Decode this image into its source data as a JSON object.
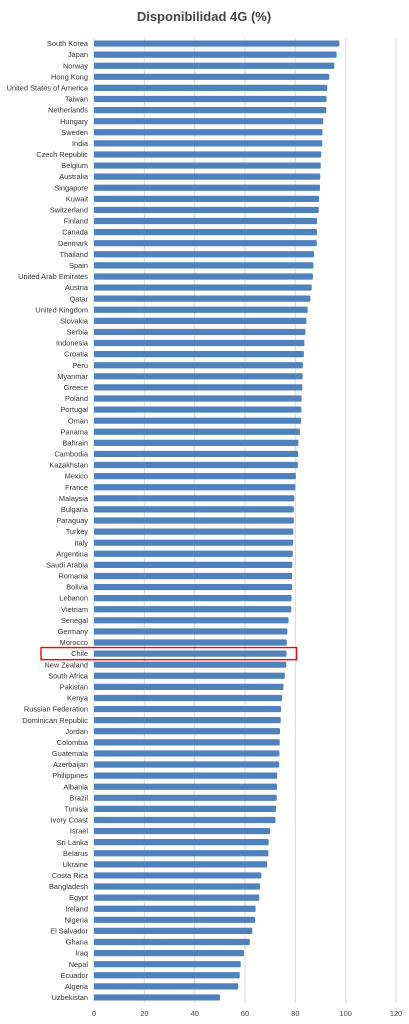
{
  "chart_data": {
    "type": "bar",
    "orientation": "horizontal",
    "title": "Disponibilidad  4G (%)",
    "xlabel": "",
    "ylabel": "",
    "xlim": [
      0,
      120
    ],
    "xticks": [
      0,
      20,
      40,
      60,
      80,
      100,
      120
    ],
    "grid": true,
    "bar_color": "#4f81bd",
    "highlight_color": "#ff0000",
    "highlight_category": "Chile",
    "categories": [
      "South Korea",
      "Japan",
      "Norway",
      "Hong Kong",
      "United States of America",
      "Taiwan",
      "Netherlands",
      "Hungary",
      "Sweden",
      "India",
      "Czech Republic",
      "Belgium",
      "Australia",
      "Singapore",
      "Kuwait",
      "Switzerland",
      "Finland",
      "Canada",
      "Denmark",
      "Thailand",
      "Spain",
      "United Arab Emirates",
      "Austria",
      "Qatar",
      "United Kingdom",
      "Slovakia",
      "Serbia",
      "Indonesia",
      "Croatia",
      "Peru",
      "Myanmar",
      "Greece",
      "Poland",
      "Portugal",
      "Oman",
      "Panama",
      "Bahrain",
      "Cambodia",
      "Kazakhstan",
      "Mexico",
      "France",
      "Malaysia",
      "Bulgaria",
      "Paraguay",
      "Turkey",
      "Italy",
      "Argentina",
      "Saudi Arabia",
      "Romania",
      "Bolivia",
      "Lebanon",
      "Vietnam",
      "Senegal",
      "Germany",
      "Morocco",
      "Chile",
      "New Zealand",
      "South Africa",
      "Pakistan",
      "Kenya",
      "Russian Federation",
      "Dominican Republic",
      "Jordan",
      "Colombia",
      "Guatemala",
      "Azerbaijan",
      "Philippines",
      "Albania",
      "Brazil",
      "Tunisia",
      "Ivory Coast",
      "Israel",
      "Sri Lanka",
      "Belarus",
      "Ukraine",
      "Costa Rica",
      "Bangladesh",
      "Egypt",
      "Ireland",
      "Nigeria",
      "El Salvador",
      "Ghana",
      "Iraq",
      "Nepal",
      "Ecuador",
      "Algeria",
      "Uzbekistan"
    ],
    "values": [
      97.5,
      96.4,
      95.5,
      93.5,
      92.7,
      92.4,
      92.3,
      91.1,
      90.8,
      90.7,
      90.3,
      90.1,
      89.9,
      89.8,
      89.4,
      89.3,
      88.6,
      88.6,
      88.5,
      87.4,
      87.2,
      87.0,
      86.5,
      86.0,
      84.9,
      84.4,
      84.0,
      83.6,
      83.4,
      83.0,
      82.9,
      82.8,
      82.5,
      82.4,
      82.3,
      81.8,
      81.2,
      81.1,
      81.0,
      80.2,
      80.0,
      79.6,
      79.4,
      79.4,
      79.2,
      79.1,
      79.0,
      78.8,
      78.7,
      78.7,
      78.5,
      78.4,
      77.3,
      76.8,
      76.6,
      76.5,
      76.4,
      75.8,
      75.3,
      74.7,
      74.3,
      74.2,
      73.9,
      73.8,
      73.7,
      73.6,
      72.8,
      72.7,
      72.6,
      72.3,
      72.1,
      70.0,
      69.4,
      69.3,
      68.8,
      66.5,
      66.0,
      65.7,
      64.2,
      64.0,
      62.9,
      61.9,
      59.6,
      58.3,
      57.9,
      57.3,
      50.1
    ]
  }
}
